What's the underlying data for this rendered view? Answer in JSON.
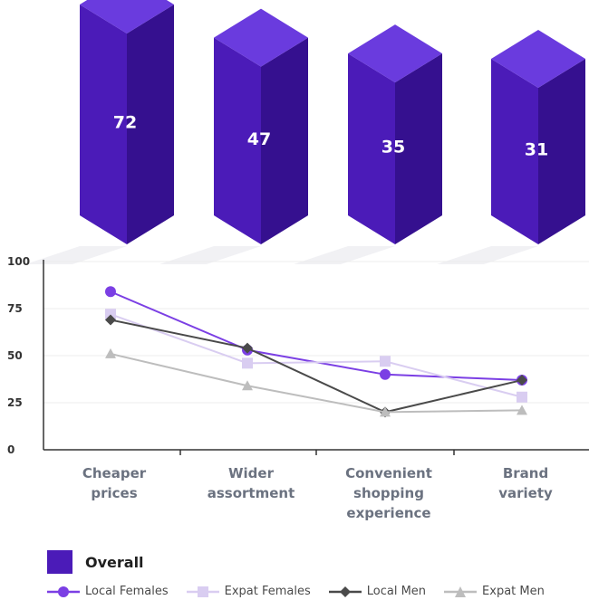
{
  "chart_data": [
    {
      "type": "bar",
      "categories": [
        "Cheaper prices",
        "Wider assortment",
        "Convenient shopping experience",
        "Brand variety"
      ],
      "series": [
        {
          "name": "Overall",
          "values": [
            72,
            47,
            35,
            31
          ]
        }
      ],
      "colors": {
        "front": "#4b1bb8",
        "side": "#35108f",
        "top": "#6a3bde"
      }
    },
    {
      "type": "line",
      "categories": [
        "Cheaper prices",
        "Wider assortment",
        "Convenient shopping experience",
        "Brand variety"
      ],
      "category_lines": [
        [
          "Cheaper",
          "prices"
        ],
        [
          "Wider",
          "assortment"
        ],
        [
          "Convenient",
          "shopping",
          "experience"
        ],
        [
          "Brand",
          "variety"
        ]
      ],
      "ylim": [
        0,
        100
      ],
      "yticks": [
        0,
        25,
        50,
        75,
        100
      ],
      "grid": true,
      "series": [
        {
          "name": "Local Females",
          "marker": "circle",
          "color": "#7b3fe4",
          "values": [
            84,
            53,
            40,
            37
          ]
        },
        {
          "name": "Expat Females",
          "marker": "square",
          "color": "#d9cdf1",
          "values": [
            72,
            46,
            47,
            28
          ]
        },
        {
          "name": "Local Men",
          "marker": "diamond",
          "color": "#4a4a4a",
          "values": [
            69,
            54,
            20,
            37
          ]
        },
        {
          "name": "Expat Men",
          "marker": "triangle",
          "color": "#bdbdbd",
          "values": [
            51,
            34,
            20,
            21
          ]
        }
      ]
    }
  ],
  "legend": {
    "overall_label": "Overall",
    "series_labels": [
      "Local Females",
      "Expat Females",
      "Local Men",
      "Expat Men"
    ]
  }
}
